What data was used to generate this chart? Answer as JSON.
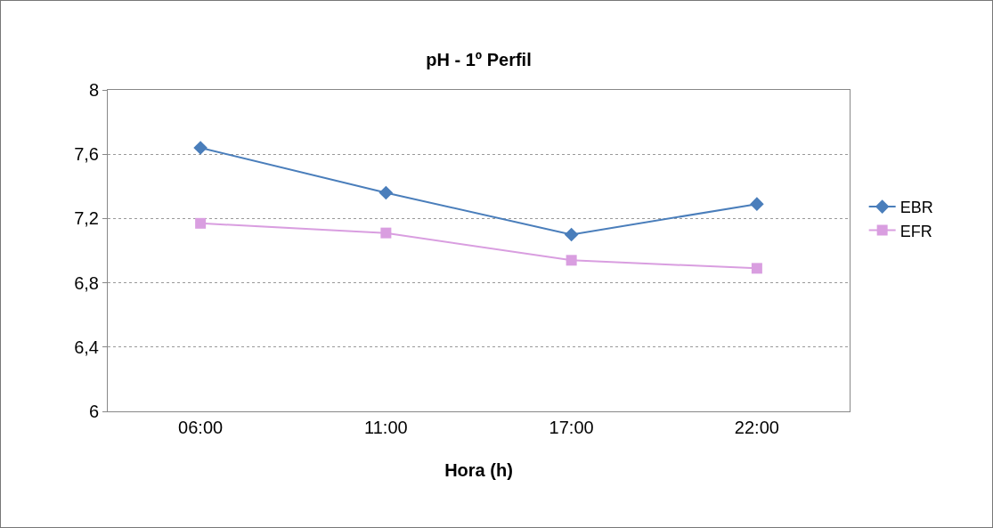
{
  "chart_data": {
    "type": "line",
    "title": "pH - 1º Perfil",
    "xlabel": "Hora (h)",
    "categories": [
      "06:00",
      "11:00",
      "17:00",
      "22:00"
    ],
    "series": [
      {
        "name": "EBR",
        "color": "#4a7ebb",
        "marker": "diamond",
        "values": [
          7.64,
          7.36,
          7.1,
          7.29
        ]
      },
      {
        "name": "EFR",
        "color": "#d99ee0",
        "marker": "square",
        "values": [
          7.17,
          7.11,
          6.94,
          6.89
        ]
      }
    ],
    "ylim": [
      6,
      8
    ],
    "yticks": [
      {
        "value": 6,
        "label": "6"
      },
      {
        "value": 6.4,
        "label": "6,4"
      },
      {
        "value": 6.8,
        "label": "6,8"
      },
      {
        "value": 7.2,
        "label": "7,2"
      },
      {
        "value": 7.6,
        "label": "7,6"
      },
      {
        "value": 8,
        "label": "8"
      }
    ],
    "grid": "y",
    "legend": "right",
    "line_style": "solid"
  }
}
